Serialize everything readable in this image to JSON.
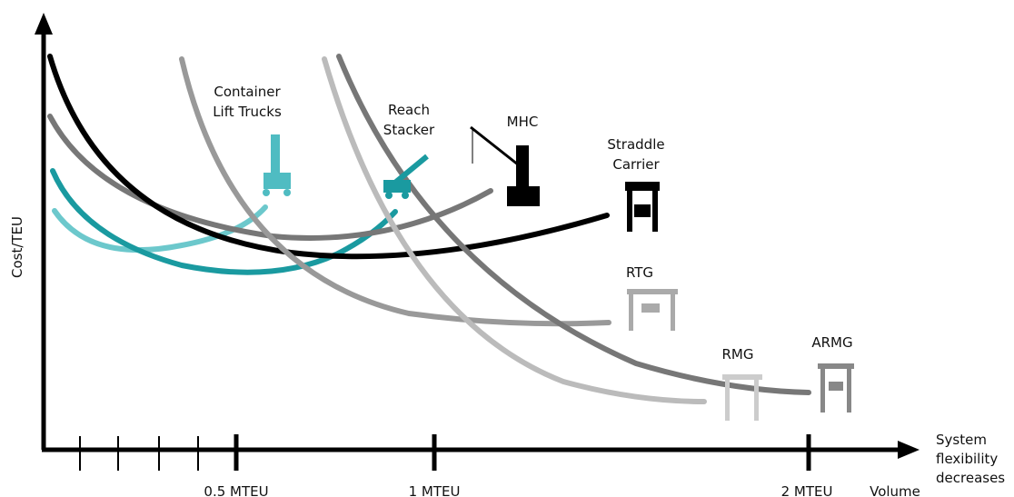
{
  "axes": {
    "y_label": "Cost/TEU",
    "x_end_label": [
      "System",
      "flexibility",
      "decreases"
    ],
    "x_unit": "Volume"
  },
  "ticks": [
    "0.5 MTEU",
    "1 MTEU",
    "2 MTEU"
  ],
  "equipment": [
    {
      "label": [
        "Container",
        "Lift Trucks"
      ]
    },
    {
      "label": [
        "Reach",
        "Stacker"
      ]
    },
    {
      "label": [
        "MHC"
      ]
    },
    {
      "label": [
        "Straddle",
        "Carrier"
      ]
    },
    {
      "label": [
        "RTG"
      ]
    },
    {
      "label": [
        "RMG"
      ]
    },
    {
      "label": [
        "ARMG"
      ]
    }
  ]
}
